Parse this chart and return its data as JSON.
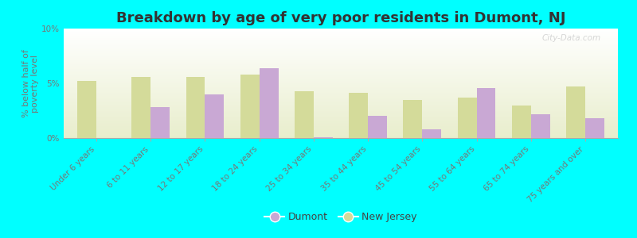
{
  "title": "Breakdown by age of very poor residents in Dumont, NJ",
  "ylabel": "% below half of\npoverty level",
  "categories": [
    "Under 6 years",
    "6 to 11 years",
    "12 to 17 years",
    "18 to 24 years",
    "25 to 34 years",
    "35 to 44 years",
    "45 to 54 years",
    "55 to 64 years",
    "65 to 74 years",
    "75 years and over"
  ],
  "dumont_values": [
    0.0,
    2.8,
    4.0,
    6.4,
    0.1,
    2.0,
    0.8,
    4.6,
    2.2,
    1.8
  ],
  "nj_values": [
    5.2,
    5.6,
    5.6,
    5.8,
    4.3,
    4.1,
    3.5,
    3.7,
    3.0,
    4.7
  ],
  "dumont_color": "#c9a8d4",
  "nj_color": "#d4db9a",
  "ylim": [
    0,
    10
  ],
  "yticks": [
    0,
    5,
    10
  ],
  "ytick_labels": [
    "0%",
    "5%",
    "10%"
  ],
  "background_color": "#00ffff",
  "title_fontsize": 13,
  "axis_label_fontsize": 8,
  "tick_fontsize": 7.5,
  "legend_labels": [
    "Dumont",
    "New Jersey"
  ],
  "bar_width": 0.35,
  "watermark": "City-Data.com"
}
